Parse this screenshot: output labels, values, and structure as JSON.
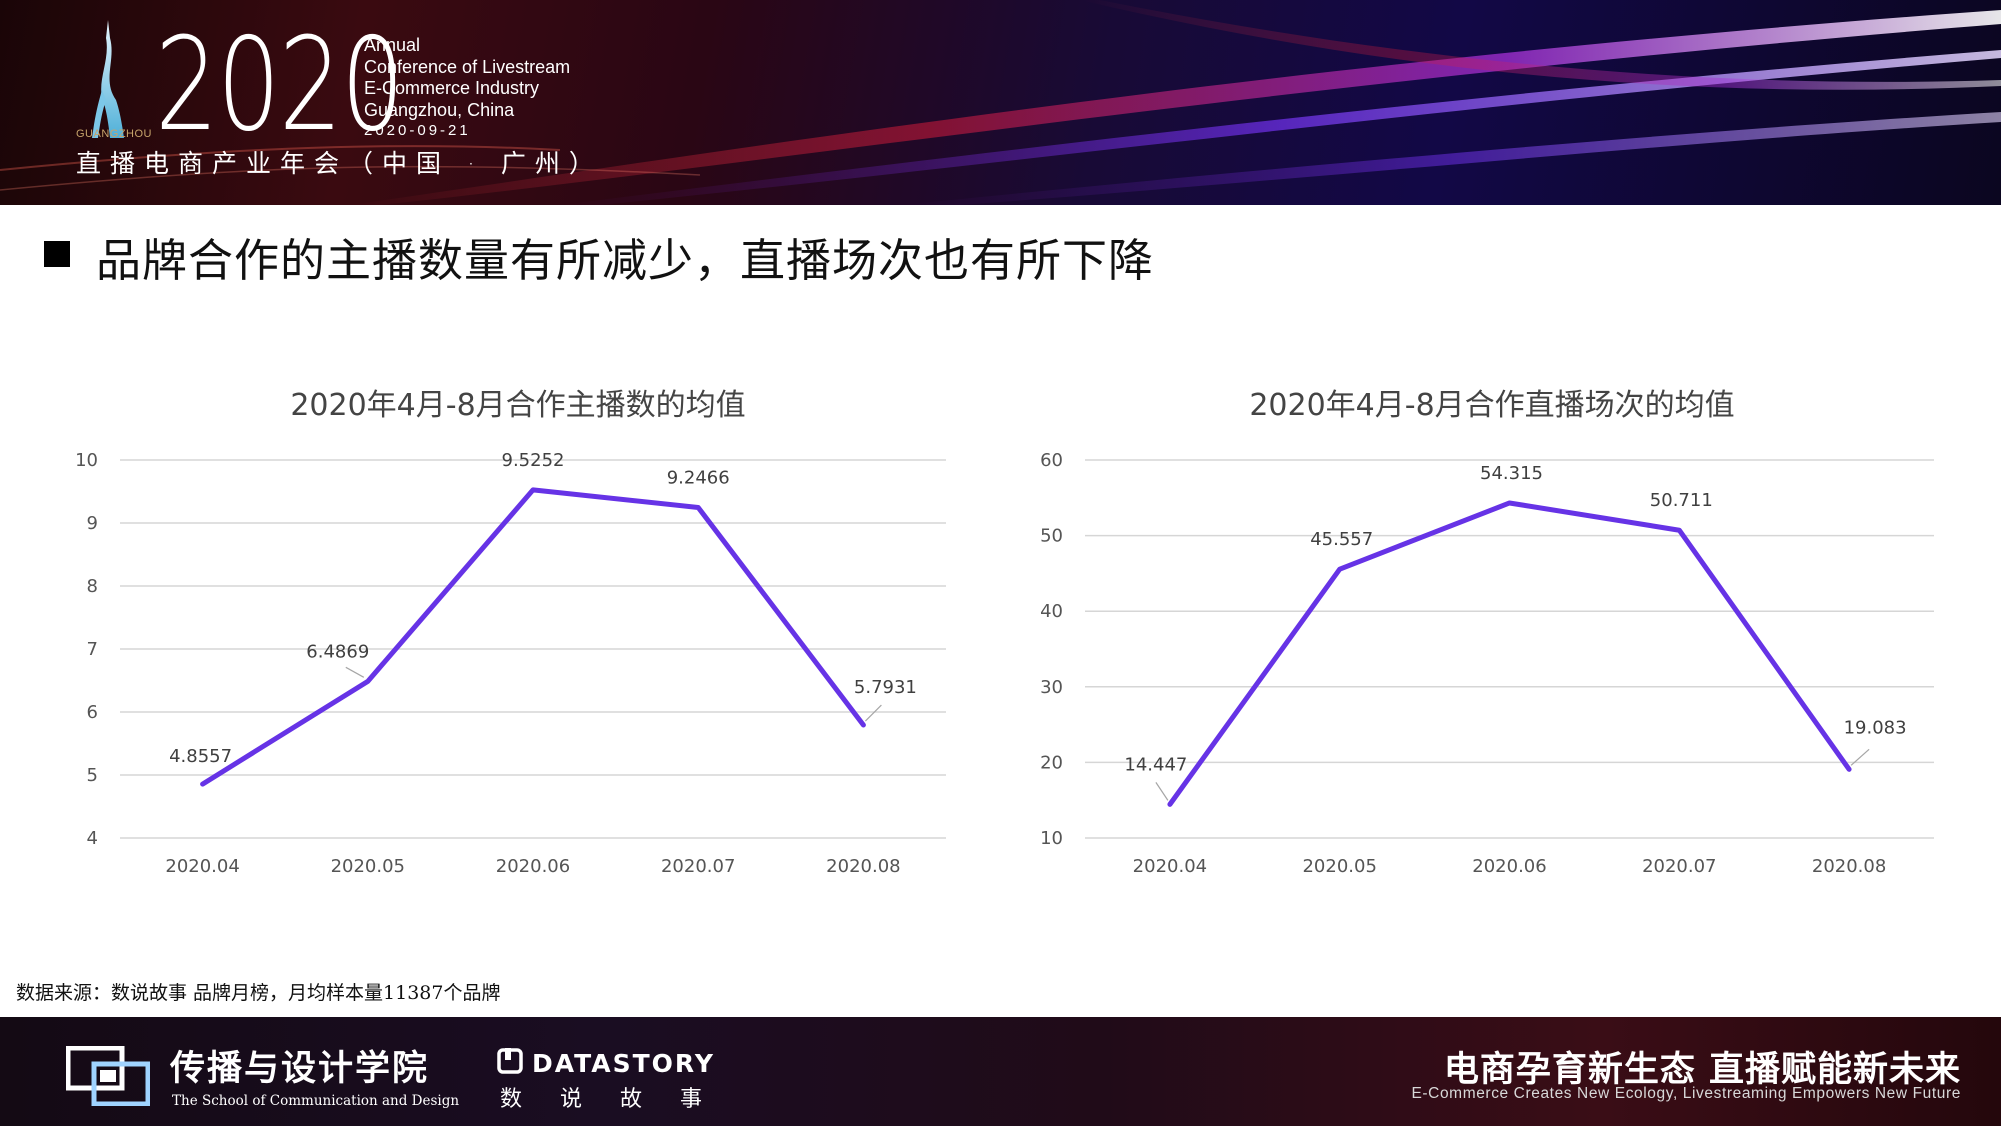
{
  "header": {
    "year": "2020",
    "conference_lines": [
      "Annual",
      "Conference of Livestream",
      "E-Commerce Industry",
      "Guangzhou, China"
    ],
    "date": "2020-09-21",
    "city_small": "GUANGZHOU",
    "cn_conference": "直播电商产业年会（中国 · 广州）"
  },
  "slide": {
    "title": "品牌合作的主播数量有所减少，直播场次也有所下降"
  },
  "chart_data": [
    {
      "type": "line",
      "title": "2020年4月-8月合作主播数的均值",
      "categories": [
        "2020.04",
        "2020.05",
        "2020.06",
        "2020.07",
        "2020.08"
      ],
      "series": [
        {
          "values": [
            4.8557,
            6.4869,
            9.5252,
            9.2466,
            5.7931
          ]
        }
      ],
      "value_labels": [
        "4.8557",
        "6.4869",
        "9.5252",
        "9.2466",
        "5.7931"
      ],
      "ylim": [
        4,
        10
      ],
      "yticks": [
        "4",
        "5",
        "6",
        "7",
        "8",
        "9",
        "10"
      ],
      "grid": true,
      "line_color": "#6633e6"
    },
    {
      "type": "line",
      "title": "2020年4月-8月合作直播场次的均值",
      "categories": [
        "2020.04",
        "2020.05",
        "2020.06",
        "2020.07",
        "2020.08"
      ],
      "series": [
        {
          "values": [
            14.447,
            45.557,
            54.315,
            50.711,
            19.083
          ]
        }
      ],
      "value_labels": [
        "14.447",
        "45.557",
        "54.315",
        "50.711",
        "19.083"
      ],
      "ylim": [
        10,
        60
      ],
      "yticks": [
        "10",
        "20",
        "30",
        "40",
        "50",
        "60"
      ],
      "grid": true,
      "line_color": "#6633e6"
    }
  ],
  "source": "数据来源：数说故事  品牌月榜，月均样本量11387个品牌",
  "footer": {
    "school_name": "传播与设计学院",
    "school_en": "The School of Communication and Design",
    "datastory_name": "DATASTORY",
    "datastory_cn": "数说故事",
    "slogan_cn": "电商孕育新生态 直播赋能新未来",
    "slogan_en": "E-Commerce  Creates  New  Ecology,  Livestreaming Empowers New Future"
  }
}
